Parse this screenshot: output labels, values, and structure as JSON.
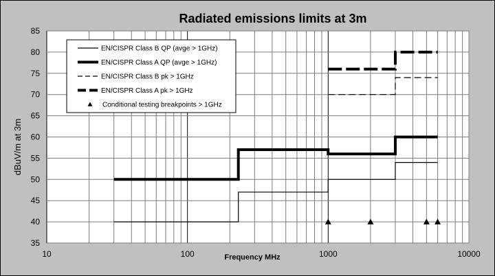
{
  "chart_data": {
    "type": "line",
    "title": "Radiated emissions limits at 3m",
    "xlabel": "Frequency MHz",
    "ylabel": "dBuV/m at 3m",
    "xscale": "log",
    "xlim": [
      10,
      10000
    ],
    "ylim": [
      35,
      85
    ],
    "xticks": [
      "10",
      "100",
      "1000",
      "10000"
    ],
    "yticks": [
      "35",
      "40",
      "45",
      "50",
      "55",
      "60",
      "65",
      "70",
      "75",
      "80",
      "85"
    ],
    "grid": true,
    "legend_position": "top-left",
    "series": [
      {
        "name": "EN/CISPR Class B QP (avge > 1GHz)",
        "style": "solid-thin",
        "points": [
          [
            30,
            40
          ],
          [
            230,
            40
          ],
          [
            230,
            47
          ],
          [
            1000,
            47
          ],
          [
            1000,
            50
          ],
          [
            3000,
            50
          ],
          [
            3000,
            54
          ],
          [
            6000,
            54
          ]
        ]
      },
      {
        "name": "EN/CISPR Class A QP (avge > 1GHz)",
        "style": "solid-thick",
        "points": [
          [
            30,
            50
          ],
          [
            230,
            50
          ],
          [
            230,
            57
          ],
          [
            1000,
            57
          ],
          [
            1000,
            56
          ],
          [
            3000,
            56
          ],
          [
            3000,
            60
          ],
          [
            6000,
            60
          ]
        ]
      },
      {
        "name": "EN/CISPR Class B pk > 1GHz",
        "style": "dashed-thin",
        "points": [
          [
            1000,
            70
          ],
          [
            3000,
            70
          ],
          [
            3000,
            74
          ],
          [
            6000,
            74
          ]
        ]
      },
      {
        "name": "EN/CISPR Class A pk > 1GHz",
        "style": "dashed-thick",
        "points": [
          [
            1000,
            76
          ],
          [
            3000,
            76
          ],
          [
            3000,
            80
          ],
          [
            6000,
            80
          ]
        ]
      },
      {
        "name": "Conditional testing breakpoints > 1GHz",
        "style": "markers",
        "points": [
          [
            1000,
            40
          ],
          [
            2000,
            40
          ],
          [
            5000,
            40
          ],
          [
            6000,
            40
          ]
        ]
      }
    ]
  }
}
